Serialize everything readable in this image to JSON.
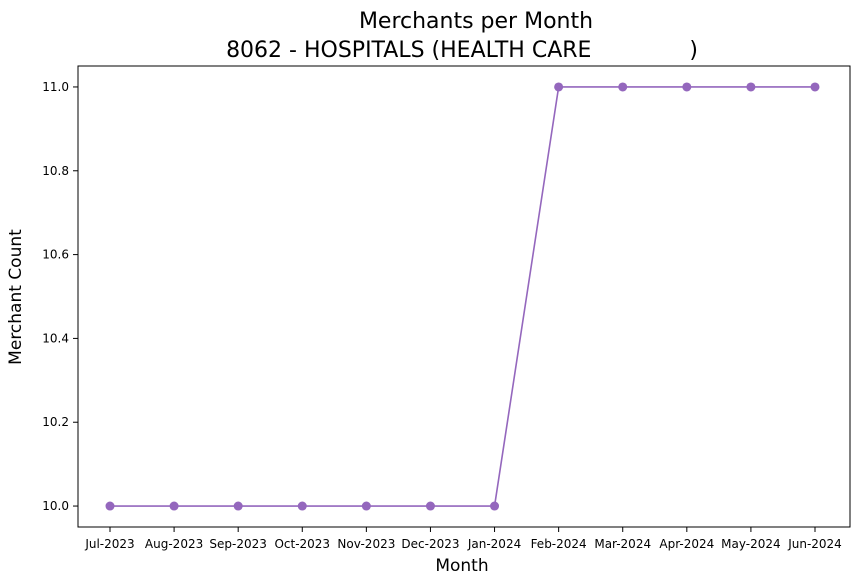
{
  "chart_data": {
    "type": "line",
    "title": "Merchants per Month",
    "subtitle": "8062 - HOSPITALS (HEALTH CARE              )",
    "xlabel": "Month",
    "ylabel": "Merchant Count",
    "categories": [
      "Jul-2023",
      "Aug-2023",
      "Sep-2023",
      "Oct-2023",
      "Nov-2023",
      "Dec-2023",
      "Jan-2024",
      "Feb-2024",
      "Mar-2024",
      "Apr-2024",
      "May-2024",
      "Jun-2024"
    ],
    "series": [
      {
        "values": [
          10,
          10,
          10,
          10,
          10,
          10,
          10,
          11,
          11,
          11,
          11,
          11
        ],
        "color": "#9467bd"
      }
    ],
    "yticks": [
      "10.0",
      "10.2",
      "10.4",
      "10.6",
      "10.8",
      "11.0"
    ],
    "ylim": [
      9.95,
      11.05
    ],
    "grid": false,
    "legend": "none",
    "marker": "circle"
  }
}
